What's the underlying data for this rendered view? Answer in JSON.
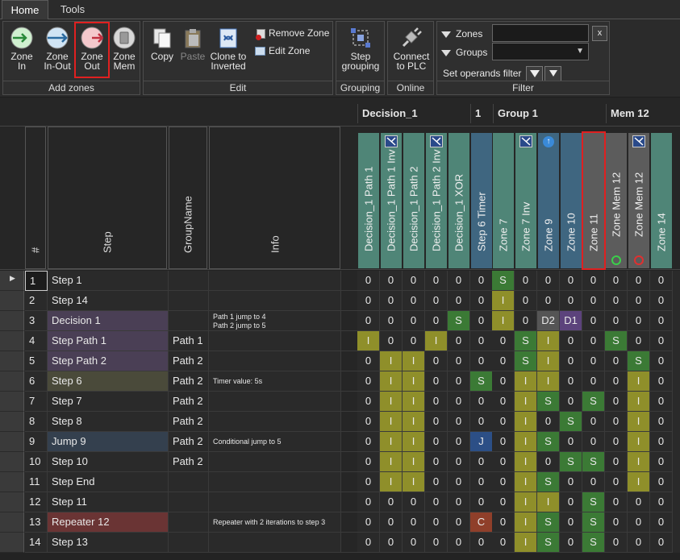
{
  "tabs": [
    "Home",
    "Tools"
  ],
  "ribbon": {
    "add_zones": {
      "label": "Add zones",
      "zone_in": "Zone In",
      "zone_in_out": "Zone In-Out",
      "zone_out": "Zone Out",
      "zone_mem": "Zone Mem"
    },
    "edit": {
      "label": "Edit",
      "copy": "Copy",
      "paste": "Paste",
      "clone": "Clone to Inverted",
      "remove_zone": "Remove Zone",
      "edit_zone": "Edit Zone"
    },
    "grouping": {
      "label": "Grouping",
      "step_grouping": "Step grouping"
    },
    "online": {
      "label": "Online",
      "connect": "Connect to PLC"
    },
    "filter": {
      "label": "Filter",
      "zones": "Zones",
      "groups": "Groups",
      "set_operands": "Set operands filter",
      "clear": "x"
    }
  },
  "colors": {
    "accent_red": "#e02020",
    "teal": "#4a8a7a",
    "blue": "#3d6b8e",
    "zone_s": "#3a7d3a",
    "zone_i": "#9a9a2a",
    "zone_gray": "#5a5a5a",
    "zone_j": "#2f4f8a",
    "zone_c": "#8a3a2a",
    "zone_d1": "#5a3f7a"
  },
  "group_headers": [
    "Decision_1",
    "1",
    "Group 1",
    "Mem 12"
  ],
  "table_headers": {
    "num": "#",
    "step": "Step",
    "group": "GroupName",
    "info": "Info"
  },
  "zone_columns": [
    {
      "name": "Decision_1 Path 1",
      "color": "teal",
      "icon": ""
    },
    {
      "name": "Decision_1 Path 1 Inv",
      "color": "teal",
      "icon": "inv-icon"
    },
    {
      "name": "Decision_1 Path 2",
      "color": "teal",
      "icon": ""
    },
    {
      "name": "Decision_1 Path 2 Inv",
      "color": "teal",
      "icon": "inv-icon"
    },
    {
      "name": "Decision_1 XOR",
      "color": "teal",
      "icon": ""
    },
    {
      "name": "Step 6 Timer",
      "color": "blue",
      "icon": ""
    },
    {
      "name": "Zone 7",
      "color": "teal",
      "icon": ""
    },
    {
      "name": "Zone 7 Inv",
      "color": "teal",
      "icon": "inv-icon"
    },
    {
      "name": "Zone 9",
      "color": "blue",
      "icon": "up-arrow-icon"
    },
    {
      "name": "Zone 10",
      "color": "blue",
      "icon": ""
    },
    {
      "name": "Zone 11",
      "color": "gray",
      "icon": ""
    },
    {
      "name": "Zone Mem 12",
      "color": "gray",
      "icon": "set-icon"
    },
    {
      "name": "Zone Mem 12",
      "color": "gray",
      "icon": "inv-reset-icon"
    },
    {
      "name": "Zone 14",
      "color": "teal",
      "icon": ""
    }
  ],
  "rows": [
    {
      "num": "1",
      "step": "Step 1",
      "group": "",
      "info": "",
      "bg": "",
      "sel": true,
      "cells": [
        "0",
        "0",
        "0",
        "0",
        "0",
        "0",
        "S",
        "0",
        "0",
        "0",
        "0",
        "0",
        "0",
        "0"
      ]
    },
    {
      "num": "2",
      "step": "Step 14",
      "group": "",
      "info": "",
      "bg": "",
      "cells": [
        "0",
        "0",
        "0",
        "0",
        "0",
        "0",
        "I",
        "0",
        "0",
        "0",
        "0",
        "0",
        "0",
        "0"
      ]
    },
    {
      "num": "3",
      "step": "Decision 1",
      "group": "",
      "info": "Path 1 jump to 4\nPath 2 jump to 5",
      "bg": "#4a3f55",
      "cells": [
        "0",
        "0",
        "0",
        "0",
        "S",
        "0",
        "I",
        "0",
        "D2",
        "D1",
        "0",
        "0",
        "0",
        "0"
      ]
    },
    {
      "num": "4",
      "step": "Step Path 1",
      "group": "Path 1",
      "info": "",
      "bg": "#4a3f55",
      "cells": [
        "I",
        "0",
        "0",
        "I",
        "0",
        "0",
        "0",
        "S",
        "I",
        "0",
        "0",
        "S",
        "0",
        "0"
      ]
    },
    {
      "num": "5",
      "step": "Step Path 2",
      "group": "Path 2",
      "info": "",
      "bg": "#4a3f55",
      "cells": [
        "0",
        "I",
        "I",
        "0",
        "0",
        "0",
        "0",
        "S",
        "I",
        "0",
        "0",
        "0",
        "S",
        "0"
      ]
    },
    {
      "num": "6",
      "step": "Step 6",
      "group": "Path 2",
      "info": "Timer value: 5s",
      "bg": "#4a4a3a",
      "cells": [
        "0",
        "I",
        "I",
        "0",
        "0",
        "S",
        "0",
        "I",
        "I",
        "0",
        "0",
        "0",
        "I",
        "0"
      ]
    },
    {
      "num": "7",
      "step": "Step 7",
      "group": "Path 2",
      "info": "",
      "bg": "",
      "cells": [
        "0",
        "I",
        "I",
        "0",
        "0",
        "0",
        "0",
        "I",
        "S",
        "0",
        "S",
        "0",
        "I",
        "0"
      ]
    },
    {
      "num": "8",
      "step": "Step 8",
      "group": "Path 2",
      "info": "",
      "bg": "",
      "cells": [
        "0",
        "I",
        "I",
        "0",
        "0",
        "0",
        "0",
        "I",
        "0",
        "S",
        "0",
        "0",
        "I",
        "0"
      ]
    },
    {
      "num": "9",
      "step": "Jump 9",
      "group": "Path 2",
      "info": "Conditional jump to 5",
      "bg": "#34404e",
      "cells": [
        "0",
        "I",
        "I",
        "0",
        "0",
        "J",
        "0",
        "I",
        "S",
        "0",
        "0",
        "0",
        "I",
        "0"
      ]
    },
    {
      "num": "10",
      "step": "Step 10",
      "group": "Path 2",
      "info": "",
      "bg": "",
      "cells": [
        "0",
        "I",
        "I",
        "0",
        "0",
        "0",
        "0",
        "I",
        "0",
        "S",
        "S",
        "0",
        "I",
        "0"
      ]
    },
    {
      "num": "11",
      "step": "Step End",
      "group": "",
      "info": "",
      "bg": "",
      "cells": [
        "0",
        "I",
        "I",
        "0",
        "0",
        "0",
        "0",
        "I",
        "S",
        "0",
        "0",
        "0",
        "I",
        "0"
      ]
    },
    {
      "num": "12",
      "step": "Step 11",
      "group": "",
      "info": "",
      "bg": "",
      "cells": [
        "0",
        "0",
        "0",
        "0",
        "0",
        "0",
        "0",
        "I",
        "I",
        "0",
        "S",
        "0",
        "0",
        "0"
      ]
    },
    {
      "num": "13",
      "step": "Repeater 12",
      "group": "",
      "info": "Repeater with 2 iterations to step 3",
      "bg": "#6a3434",
      "cells": [
        "0",
        "0",
        "0",
        "0",
        "0",
        "C",
        "0",
        "I",
        "S",
        "0",
        "S",
        "0",
        "0",
        "0"
      ]
    },
    {
      "num": "14",
      "step": "Step 13",
      "group": "",
      "info": "",
      "bg": "",
      "cells": [
        "0",
        "0",
        "0",
        "0",
        "0",
        "0",
        "0",
        "I",
        "S",
        "0",
        "S",
        "0",
        "0",
        "0"
      ]
    }
  ]
}
